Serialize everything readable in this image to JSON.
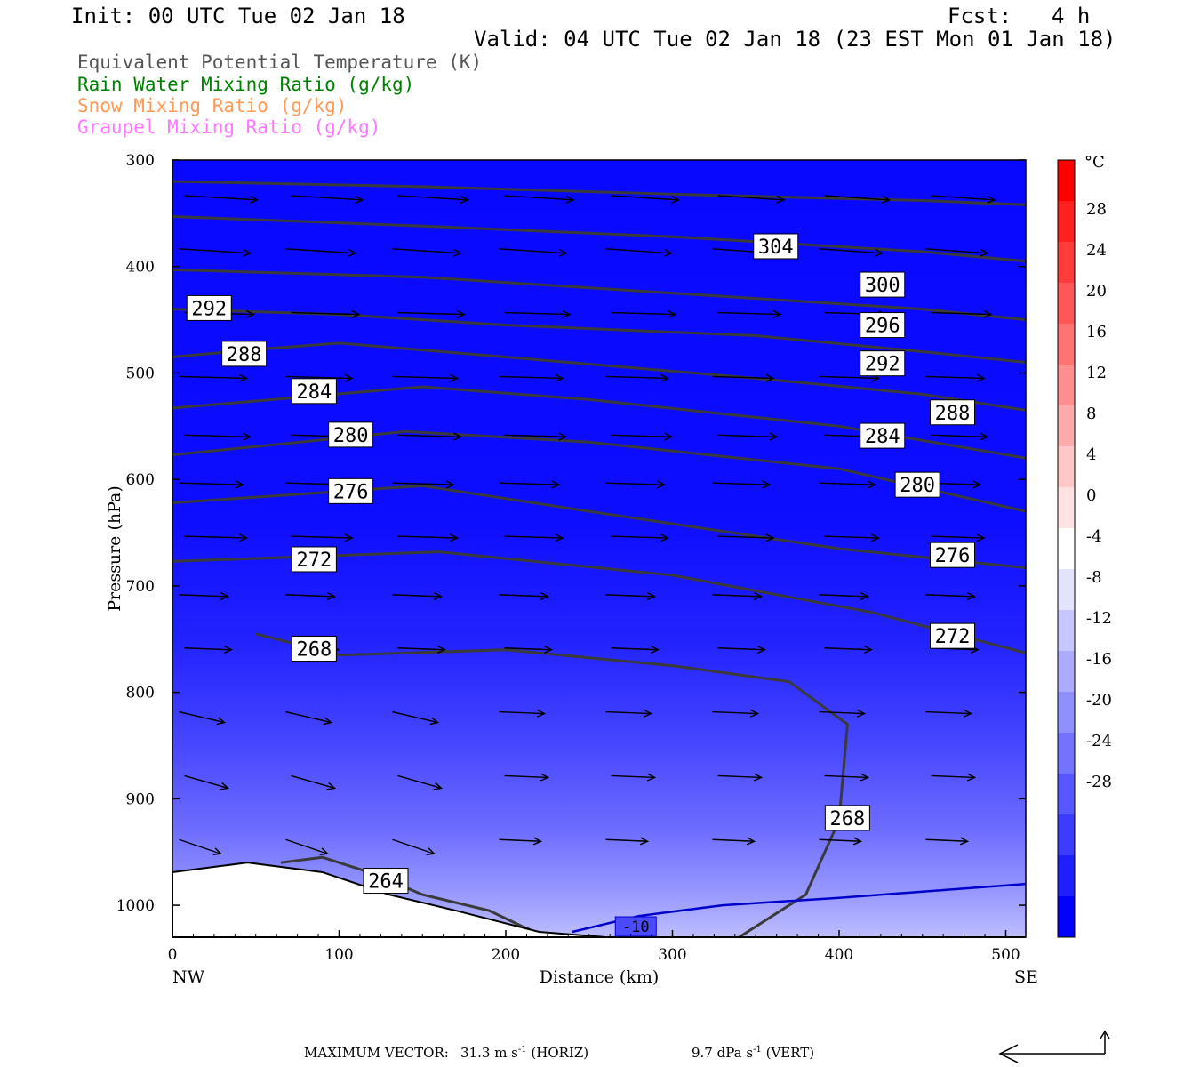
{
  "header": {
    "init": "Init: 00 UTC Tue 02 Jan 18",
    "fcst_label": "Fcst:",
    "fcst_value": "4 h",
    "valid": "Valid: 04 UTC Tue 02 Jan 18 (23 EST Mon 01 Jan 18)"
  },
  "legend": [
    {
      "text": "Equivalent Potential Temperature (K)",
      "color": "#555555"
    },
    {
      "text": "Rain Water Mixing Ratio (g/kg)",
      "color": "#008000"
    },
    {
      "text": "Snow Mixing Ratio (g/kg)",
      "color": "#ff9955"
    },
    {
      "text": "Graupel Mixing Ratio (g/kg)",
      "color": "#ff77ff"
    }
  ],
  "footer": {
    "max_vector_label": "MAXIMUM VECTOR:",
    "horiz_value": "31.3",
    "horiz_unit": "m s",
    "horiz_tag": "(HORIZ)",
    "vert_value": "9.7",
    "vert_unit": "dPa s",
    "vert_tag": "(VERT)",
    "exponent": "-1"
  },
  "chart_data": {
    "type": "cross-section",
    "xlabel": "Distance (km)",
    "ylabel": "Pressure (hPa)",
    "xlim": [
      0,
      512
    ],
    "ylim": [
      1030,
      300
    ],
    "x_ticks": [
      0,
      100,
      200,
      300,
      400,
      500
    ],
    "y_ticks": [
      300,
      400,
      500,
      600,
      700,
      800,
      900,
      1000
    ],
    "x_end_labels": {
      "left": "NW",
      "right": "SE"
    },
    "colorbar": {
      "unit": "°C",
      "labels": [
        28,
        24,
        20,
        16,
        12,
        8,
        4,
        0,
        -4,
        -8,
        -12,
        -16,
        -20,
        -24,
        -28
      ],
      "colors": [
        "#ff0000",
        "#ff2020",
        "#ff3c3c",
        "#ff5757",
        "#ff7373",
        "#ff8f8f",
        "#ffabab",
        "#ffc7c7",
        "#ffe3e3",
        "#ffffff",
        "#e3e3ff",
        "#c7c7ff",
        "#ababff",
        "#8f8fff",
        "#7373ff",
        "#5757ff",
        "#3c3cff",
        "#2020ff",
        "#0000ff"
      ]
    },
    "theta_e_contours": [
      {
        "value": 304,
        "points": [
          [
            0,
            320
          ],
          [
            150,
            325
          ],
          [
            300,
            332
          ],
          [
            450,
            338
          ],
          [
            512,
            342
          ]
        ],
        "labels": [
          [
            362,
            381
          ]
        ]
      },
      {
        "value": 300,
        "points": [
          [
            0,
            353
          ],
          [
            150,
            362
          ],
          [
            300,
            372
          ],
          [
            450,
            386
          ],
          [
            512,
            395
          ]
        ],
        "labels": [
          [
            426,
            417
          ]
        ]
      },
      {
        "value": 296,
        "points": [
          [
            0,
            403
          ],
          [
            150,
            410
          ],
          [
            300,
            425
          ],
          [
            450,
            440
          ],
          [
            512,
            450
          ]
        ],
        "labels": [
          [
            426,
            455
          ]
        ]
      },
      {
        "value": 292,
        "points": [
          [
            0,
            440
          ],
          [
            100,
            445
          ],
          [
            200,
            455
          ],
          [
            350,
            465
          ],
          [
            450,
            480
          ],
          [
            512,
            490
          ]
        ],
        "labels": [
          [
            22,
            439
          ]
        ]
      },
      {
        "value": 292,
        "points": [],
        "labels": [
          [
            426,
            491
          ]
        ]
      },
      {
        "value": 288,
        "points": [
          [
            0,
            485
          ],
          [
            50,
            478
          ],
          [
            100,
            472
          ],
          [
            200,
            485
          ],
          [
            350,
            505
          ],
          [
            450,
            520
          ],
          [
            512,
            535
          ]
        ],
        "labels": [
          [
            43,
            482
          ],
          [
            468,
            537
          ]
        ]
      },
      {
        "value": 284,
        "points": [
          [
            0,
            533
          ],
          [
            150,
            513
          ],
          [
            250,
            525
          ],
          [
            400,
            550
          ],
          [
            512,
            580
          ]
        ],
        "labels": [
          [
            85,
            517
          ],
          [
            426,
            559
          ]
        ]
      },
      {
        "value": 280,
        "points": [
          [
            0,
            577
          ],
          [
            140,
            555
          ],
          [
            250,
            565
          ],
          [
            400,
            590
          ],
          [
            512,
            630
          ]
        ],
        "labels": [
          [
            107,
            558
          ],
          [
            447,
            605
          ]
        ]
      },
      {
        "value": 276,
        "points": [
          [
            0,
            622
          ],
          [
            150,
            606
          ],
          [
            250,
            630
          ],
          [
            400,
            665
          ],
          [
            512,
            683
          ]
        ],
        "labels": [
          [
            107,
            611
          ],
          [
            468,
            671
          ]
        ]
      },
      {
        "value": 272,
        "points": [
          [
            0,
            677
          ],
          [
            160,
            668
          ],
          [
            300,
            690
          ],
          [
            420,
            725
          ],
          [
            512,
            763
          ]
        ],
        "labels": [
          [
            85,
            675
          ],
          [
            468,
            747
          ]
        ]
      },
      {
        "value": 268,
        "points": [
          [
            50,
            745
          ],
          [
            100,
            765
          ],
          [
            200,
            760
          ],
          [
            300,
            775
          ],
          [
            370,
            790
          ],
          [
            405,
            830
          ],
          [
            400,
            920
          ],
          [
            380,
            990
          ],
          [
            340,
            1030
          ]
        ],
        "labels": [
          [
            85,
            759
          ],
          [
            405,
            918
          ]
        ]
      },
      {
        "value": 264,
        "points": [
          [
            65,
            960
          ],
          [
            90,
            955
          ],
          [
            120,
            970
          ],
          [
            150,
            990
          ],
          [
            190,
            1005
          ],
          [
            210,
            1020
          ],
          [
            222,
            1028
          ]
        ],
        "labels": [
          [
            128,
            977
          ]
        ]
      }
    ],
    "temperature_contours": [
      {
        "value": -10,
        "points": [
          [
            240,
            1025
          ],
          [
            280,
            1010
          ],
          [
            330,
            1000
          ],
          [
            400,
            993
          ],
          [
            512,
            980
          ]
        ],
        "labels": [
          [
            278,
            1020
          ]
        ]
      }
    ],
    "terrain_surface_hpa": [
      [
        0,
        969
      ],
      [
        45,
        960
      ],
      [
        90,
        969
      ],
      [
        130,
        990
      ],
      [
        170,
        1005
      ],
      [
        220,
        1025
      ],
      [
        260,
        1030
      ],
      [
        512,
        1030
      ]
    ]
  }
}
